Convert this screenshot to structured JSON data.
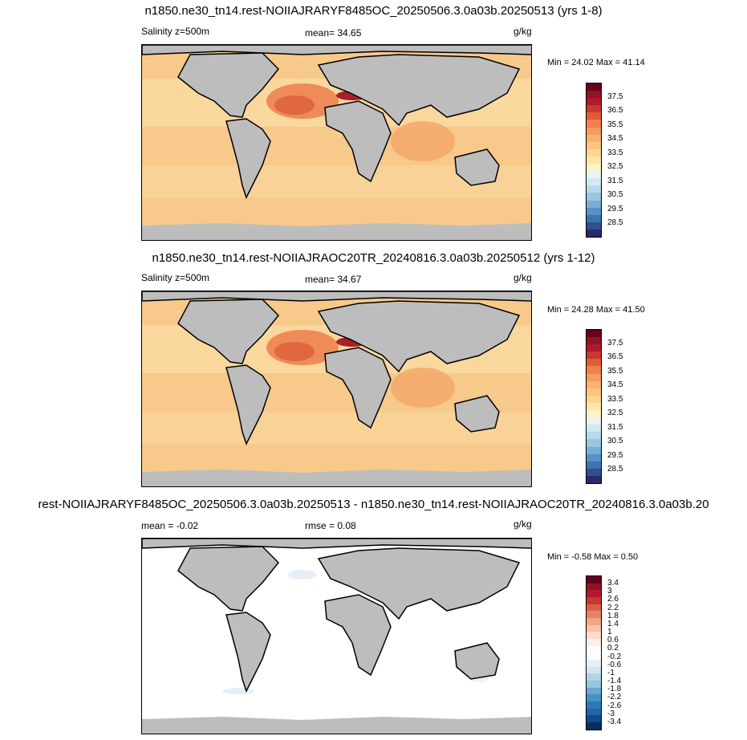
{
  "panels": [
    {
      "title": "n1850.ne30_tn14.rest-NOIIAJRARYF8485OC_20250506.3.0a03b.20250513 (yrs 1-8)",
      "left_label": "Salinity z=500m",
      "mid_label": "mean=  34.65",
      "units": "g/kg",
      "minmax": "Min =  24.02 Max =  41.14",
      "ocean_color": "#f7c98a",
      "ticks": [
        "37.5",
        "36.5",
        "35.5",
        "34.5",
        "33.5",
        "32.5",
        "31.5",
        "30.5",
        "29.5",
        "28.5"
      ]
    },
    {
      "title": "n1850.ne30_tn14.rest-NOIIAJRAOC20TR_20240816.3.0a03b.20250512 (yrs 1-12)",
      "left_label": "Salinity z=500m",
      "mid_label": "mean=  34.67",
      "units": "g/kg",
      "minmax": "Min =  24.28 Max =  41.50",
      "ocean_color": "#f7c98a",
      "ticks": [
        "37.5",
        "36.5",
        "35.5",
        "34.5",
        "33.5",
        "32.5",
        "31.5",
        "30.5",
        "29.5",
        "28.5"
      ]
    },
    {
      "title": "rest-NOIIAJRARYF8485OC_20250506.3.0a03b.20250513 - n1850.ne30_tn14.rest-NOIIAJRAOC20TR_20240816.3.0a03b.20",
      "left_label": "mean =  -0.02",
      "mid_label": "rmse =   0.08",
      "units": "g/kg",
      "minmax": "Min =  -0.58 Max =   0.50",
      "ocean_color": "#ffffff",
      "ticks": [
        "3.4",
        "3",
        "2.6",
        "2.2",
        "1.8",
        "1.4",
        "1",
        "0.6",
        "0.2",
        "-0.2",
        "-0.6",
        "-1",
        "-1.4",
        "-1.8",
        "-2.2",
        "-2.6",
        "-3",
        "-3.4"
      ]
    }
  ],
  "colors": {
    "land": "#bdbdbd",
    "salinity_scale": [
      "#67001f",
      "#8e1525",
      "#b2182b",
      "#c9382e",
      "#de5b3a",
      "#f0804f",
      "#f59c5e",
      "#f8b26e",
      "#fac57f",
      "#fcd591",
      "#fde6a8",
      "#fef1c4",
      "#e9f3f2",
      "#d3e9f2",
      "#b7d9ea",
      "#99c6e0",
      "#78aed3",
      "#5692c4",
      "#3c73b0",
      "#2f4f92",
      "#2a2a6b"
    ],
    "diff_scale": [
      "#67001f",
      "#8e1525",
      "#b2182b",
      "#c9382e",
      "#d6604d",
      "#e58267",
      "#f4a582",
      "#f8c3a9",
      "#fddbc7",
      "#fdeee6",
      "#ffffff",
      "#ffffff",
      "#e6eff6",
      "#d1e5f0",
      "#b4d3e8",
      "#92c5de",
      "#6aa6cd",
      "#4393c3",
      "#2f78b5",
      "#2166ac",
      "#134b87",
      "#053061"
    ]
  }
}
